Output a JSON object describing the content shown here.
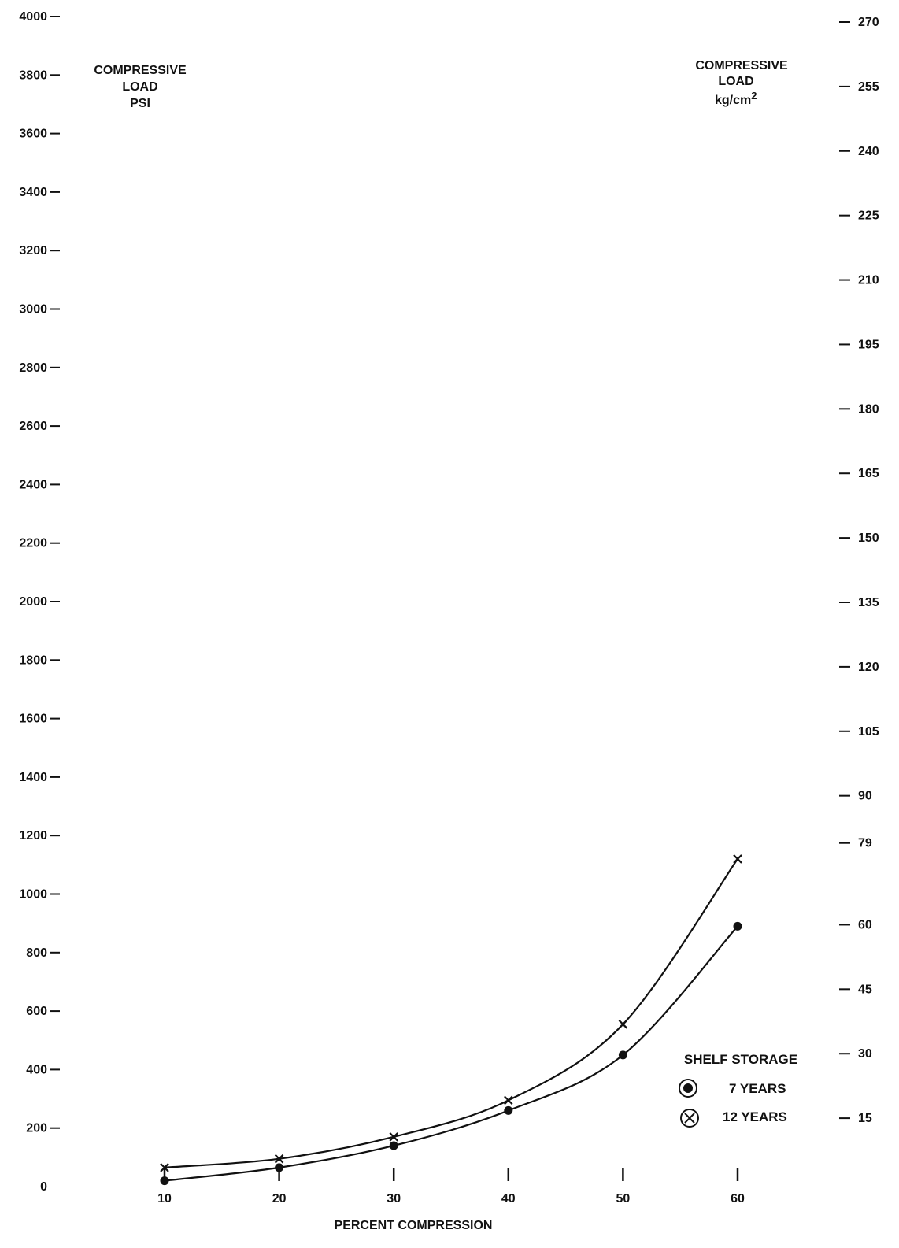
{
  "chart_data": {
    "type": "line",
    "title": "",
    "xlabel": "PERCENT COMPRESSION",
    "ylabel_left": [
      "COMPRESSIVE",
      "LOAD",
      "PSI"
    ],
    "ylabel_right": [
      "COMPRESSIVE",
      "LOAD",
      "kg/cm",
      "2"
    ],
    "x_ticks": [
      10,
      20,
      30,
      40,
      50,
      60
    ],
    "xlim": [
      10,
      60
    ],
    "y_ticks_left": [
      "0",
      "200",
      "400",
      "600",
      "800",
      "1000",
      "1200",
      "1400",
      "1600",
      "1800",
      "2000",
      "2200",
      "2400",
      "2600",
      "2800",
      "3000",
      "3200",
      "3400",
      "3600",
      "3800",
      "4000"
    ],
    "y_ticks_right": [
      "15",
      "30",
      "45",
      "60",
      "79",
      "90",
      "105",
      "120",
      "135",
      "150",
      "165",
      "180",
      "195",
      "210",
      "225",
      "240",
      "255",
      "270"
    ],
    "ylim_left": [
      0,
      4000
    ],
    "ylim_right": [
      0,
      270
    ],
    "grid": false,
    "legend_title": "SHELF STORAGE",
    "legend_position": "bottom-right",
    "series": [
      {
        "name": "7 YEARS",
        "marker": "dot",
        "x": [
          10,
          20,
          30,
          40,
          50,
          60
        ],
        "values": [
          20,
          65,
          140,
          260,
          450,
          890
        ]
      },
      {
        "name": "12 YEARS",
        "marker": "x",
        "x": [
          10,
          20,
          30,
          40,
          50,
          60
        ],
        "values": [
          65,
          95,
          170,
          295,
          555,
          1120
        ]
      }
    ]
  }
}
